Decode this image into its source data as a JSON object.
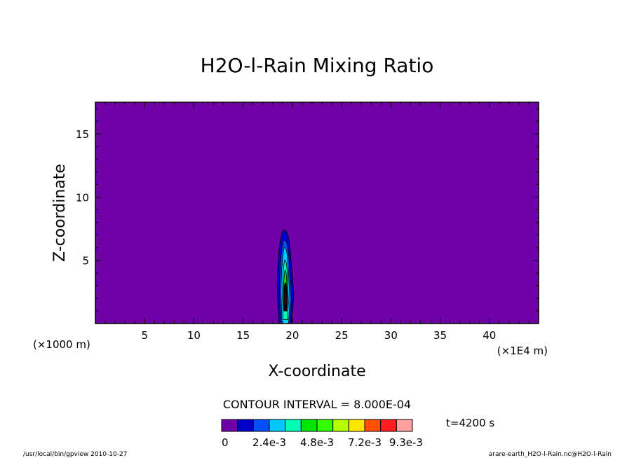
{
  "chart_data": {
    "type": "contour",
    "title": "H2O-l-Rain Mixing Ratio",
    "xlabel": "X-coordinate",
    "ylabel": "Z-coordinate",
    "x_unit_left": "(×1000 m)",
    "x_unit_right": "(×1E4 m)",
    "xlim": [
      0,
      45
    ],
    "ylim": [
      0,
      17.5
    ],
    "x_ticks": [
      5,
      10,
      15,
      20,
      25,
      30,
      35,
      40
    ],
    "y_ticks": [
      5,
      10,
      15
    ],
    "contour_interval_text": "CONTOUR INTERVAL = 8.000E-04",
    "time_label": "t=4200 s",
    "background_color": "#7000a8",
    "colorbar": {
      "colors": [
        "#7000a8",
        "#0000c8",
        "#0050ff",
        "#00c8ff",
        "#00ffb4",
        "#00e600",
        "#32ff00",
        "#b4ff00",
        "#ffe600",
        "#ff5000",
        "#ff1e1e",
        "#ffa0a0"
      ],
      "labels": [
        "0",
        "2.4e-3",
        "4.8e-3",
        "7.2e-3",
        "9.3e-3"
      ],
      "label_levels": [
        0,
        3,
        6,
        9,
        11.6
      ]
    },
    "plume": {
      "x_center": 19.3,
      "levels": [
        {
          "color": "#0000c8",
          "x_halfwidth": 0.85,
          "z_bottom": 0,
          "z_top": 7.4
        },
        {
          "color": "#0050ff",
          "x_halfwidth": 0.6,
          "z_bottom": 0,
          "z_top": 6.6
        },
        {
          "color": "#00c8ff",
          "x_halfwidth": 0.45,
          "z_bottom": 0,
          "z_top": 6.0
        },
        {
          "color": "#00ffb4",
          "x_halfwidth": 0.3,
          "z_bottom": 0.3,
          "z_top": 5.0
        },
        {
          "color": "#00e600",
          "x_halfwidth": 0.2,
          "z_bottom": 1.0,
          "z_top": 4.2
        },
        {
          "color": "#000000",
          "x_halfwidth": 0.2,
          "z_bottom": 1.0,
          "z_top": 3.2
        },
        {
          "color": "#3a0010",
          "x_halfwidth": 0.15,
          "z_bottom": 1.5,
          "z_top": 2.6
        }
      ]
    }
  },
  "footer": {
    "left": "/usr/local/bin/gpview  2010-10-27",
    "right": "arare-earth_H2O-l-Rain.nc@H2O-l-Rain"
  }
}
